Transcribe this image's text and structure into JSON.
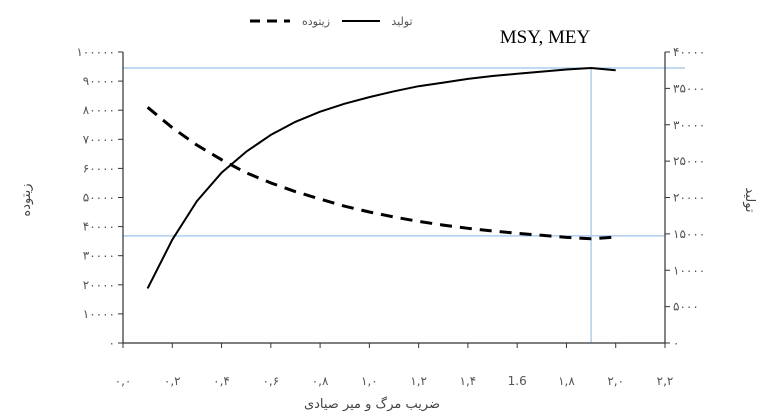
{
  "chart_data": {
    "type": "line",
    "title": "",
    "xlabel": "ضریب مرگ و میر صیادی",
    "ylabel_left": "زیتوده",
    "ylabel_right": "تولید",
    "xlim": [
      0,
      2.2
    ],
    "ylim_left": [
      0,
      100000
    ],
    "ylim_right": [
      0,
      40000
    ],
    "x_tick_values": [
      0,
      0.2,
      0.4,
      0.6,
      0.8,
      1.0,
      1.2,
      1.4,
      1.6,
      1.8,
      2.0,
      2.2
    ],
    "x_tick_labels": [
      "۰,۰",
      "۰,۲",
      "۰,۴",
      "۰,۶",
      "۰,۸",
      "۱,۰",
      "۱,۲",
      "۱,۴",
      "1.6",
      "۱,۸",
      "۲,۰",
      "۲,۲"
    ],
    "y_left_tick_values": [
      0,
      10000,
      20000,
      30000,
      40000,
      50000,
      60000,
      70000,
      80000,
      90000,
      100000
    ],
    "y_left_tick_labels": [
      "۰",
      "۱۰۰۰۰",
      "۲۰۰۰۰",
      "۳۰۰۰۰",
      "۴۰۰۰۰",
      "۵۰۰۰۰",
      "۶۰۰۰۰",
      "۷۰۰۰۰",
      "۸۰۰۰۰",
      "۹۰۰۰۰",
      "۱۰۰۰۰۰"
    ],
    "y_right_tick_values": [
      0,
      5000,
      10000,
      15000,
      20000,
      25000,
      30000,
      35000,
      40000
    ],
    "y_right_tick_labels": [
      "۰",
      "۵۰۰۰",
      "۱۰۰۰۰",
      "۱۵۰۰۰",
      "۲۰۰۰۰",
      "۲۵۰۰۰",
      "۳۰۰۰۰",
      "۳۵۰۰۰",
      "۴۰۰۰۰"
    ],
    "series": [
      {
        "name": "تولید",
        "axis": "right",
        "style": "solid",
        "color": "#000000",
        "x": [
          0.1,
          0.2,
          0.3,
          0.4,
          0.5,
          0.6,
          0.7,
          0.8,
          0.9,
          1.0,
          1.1,
          1.2,
          1.3,
          1.4,
          1.5,
          1.6,
          1.7,
          1.8,
          1.9,
          2.0
        ],
        "values": [
          7500,
          14200,
          19500,
          23400,
          26300,
          28600,
          30400,
          31800,
          32900,
          33800,
          34600,
          35300,
          35800,
          36300,
          36700,
          37000,
          37300,
          37600,
          37800,
          37500
        ]
      },
      {
        "name": "زیتوده",
        "axis": "left",
        "style": "dashed",
        "color": "#000000",
        "x": [
          0.1,
          0.2,
          0.3,
          0.4,
          0.5,
          0.6,
          0.7,
          0.8,
          0.9,
          1.0,
          1.1,
          1.2,
          1.3,
          1.4,
          1.5,
          1.6,
          1.7,
          1.8,
          1.9,
          2.0
        ],
        "values": [
          81000,
          74000,
          68000,
          63000,
          58500,
          55000,
          52000,
          49500,
          47000,
          45000,
          43300,
          41800,
          40500,
          39400,
          38500,
          37700,
          37000,
          36300,
          35800,
          36400
        ]
      }
    ],
    "reference_lines": {
      "vertical_x": 1.9,
      "horizontal_right_axis": 37800,
      "horizontal_left_axis": 36800,
      "color": "#9dc3e6"
    },
    "annotations": [
      {
        "text": "MSY, MEY"
      }
    ],
    "legend_position": "top-center",
    "grid": false
  }
}
